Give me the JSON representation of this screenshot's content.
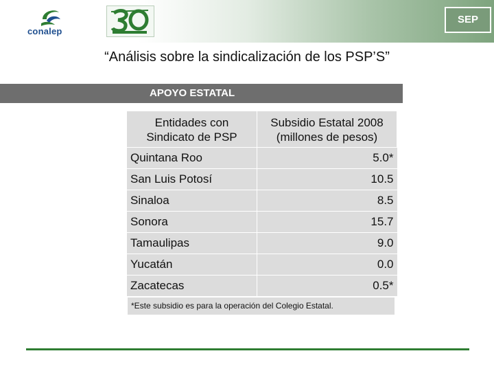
{
  "header": {
    "brand_text": "conalep",
    "sep_label": "SEP"
  },
  "title": "“Análisis sobre la sindicalización de los PSP’S”",
  "section": {
    "label": "APOYO ESTATAL"
  },
  "table": {
    "headers": {
      "col1_line1": "Entidades con",
      "col1_line2": "Sindicato de PSP",
      "col2_line1": "Subsidio Estatal 2008",
      "col2_line2": "(millones de pesos)"
    },
    "rows": [
      {
        "entity": "Quintana Roo",
        "value": "5.0*"
      },
      {
        "entity": "San Luis Potosí",
        "value": "10.5"
      },
      {
        "entity": "Sinaloa",
        "value": "8.5"
      },
      {
        "entity": "Sonora",
        "value": "15.7"
      },
      {
        "entity": "Tamaulipas",
        "value": "9.0"
      },
      {
        "entity": "Yucatán",
        "value": "0.0"
      },
      {
        "entity": "Zacatecas",
        "value": "0.5*"
      }
    ]
  },
  "footnote": "*Este subsidio es para la operación del Colegio Estatal.",
  "colors": {
    "header_green": "#7ea47e",
    "section_bar": "#6e6e6e",
    "table_bg": "#dcdcdc",
    "rule_green": "#2e7d32",
    "conalep_blue": "#1f4f8f"
  },
  "icons": [
    "conalep-logo-icon",
    "anniversary-30-logo-icon",
    "sep-logo-icon"
  ]
}
